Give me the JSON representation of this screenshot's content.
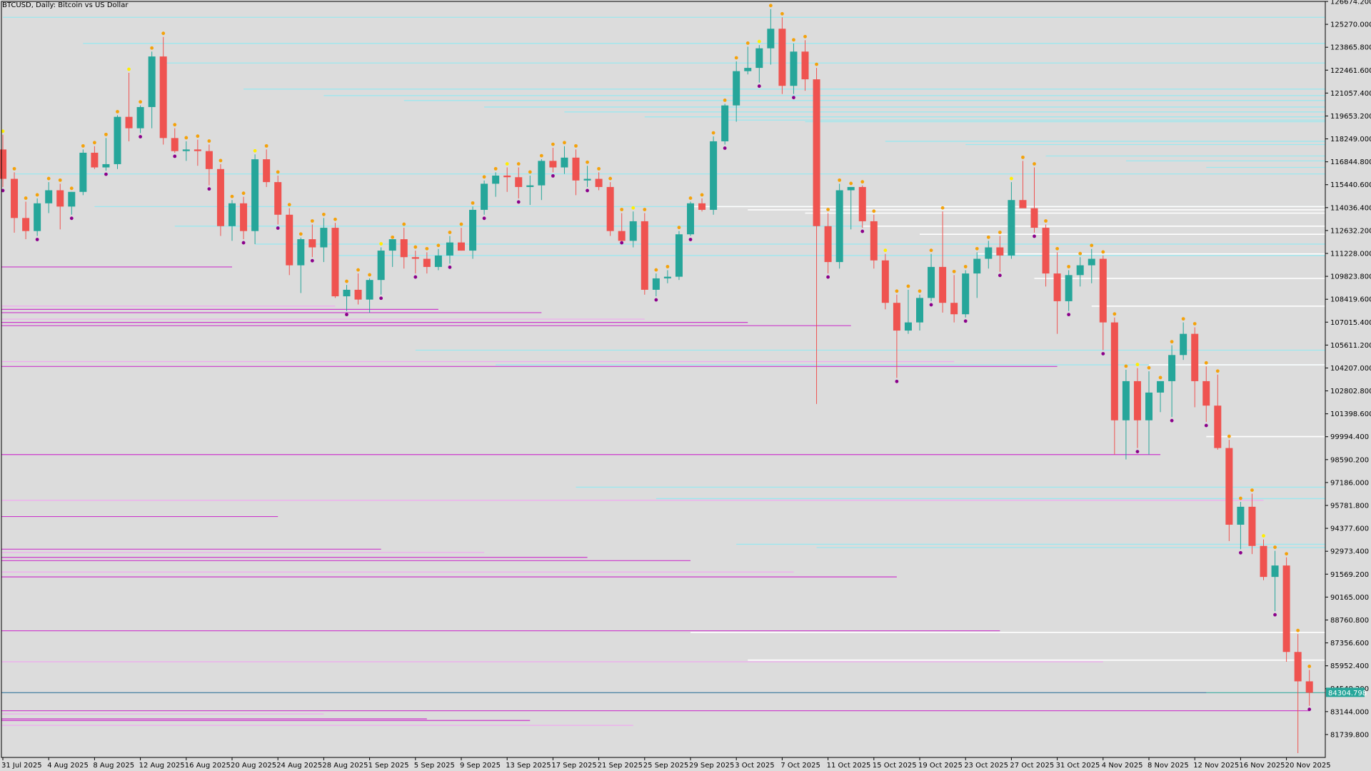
{
  "window": {
    "title": "BTCUSD, Daily:  Bitcoin vs US Dollar"
  },
  "chart_data": {
    "type": "candlestick",
    "symbol": "BTCUSD",
    "timeframe": "Daily",
    "description": "Bitcoin vs US Dollar",
    "current_price": 84304.798,
    "current_price_label": "84304.798",
    "ylim": [
      80335.8,
      126674.2
    ],
    "y_ticks": [
      "126674.200",
      "125270.000",
      "123865.800",
      "122461.600",
      "121057.400",
      "119653.200",
      "118249.000",
      "116844.800",
      "115440.600",
      "114036.400",
      "112632.200",
      "111228.000",
      "109823.800",
      "108419.600",
      "107015.400",
      "105611.200",
      "104207.000",
      "102802.800",
      "101398.600",
      "99994.400",
      "98590.200",
      "97186.000",
      "95781.800",
      "94377.600",
      "92973.400",
      "91569.200",
      "90165.000",
      "88760.800",
      "87356.600",
      "85952.400",
      "84548.200",
      "83144.000",
      "81739.800"
    ],
    "x_ticks": [
      "31 Jul 2025",
      "4 Aug 2025",
      "8 Aug 2025",
      "12 Aug 2025",
      "16 Aug 2025",
      "20 Aug 2025",
      "24 Aug 2025",
      "28 Aug 2025",
      "1 Sep 2025",
      "5 Sep 2025",
      "9 Sep 2025",
      "13 Sep 2025",
      "17 Sep 2025",
      "21 Sep 2025",
      "25 Sep 2025",
      "29 Sep 2025",
      "3 Oct 2025",
      "7 Oct 2025",
      "11 Oct 2025",
      "15 Oct 2025",
      "19 Oct 2025",
      "23 Oct 2025",
      "27 Oct 2025",
      "31 Oct 2025",
      "4 Nov 2025",
      "8 Nov 2025",
      "12 Nov 2025",
      "16 Nov 2025",
      "20 Nov 2025"
    ],
    "candles": [
      {
        "o": 117600,
        "h": 118500,
        "l": 115300,
        "c": 115800
      },
      {
        "o": 115800,
        "h": 116200,
        "l": 112500,
        "c": 113400
      },
      {
        "o": 113400,
        "h": 114400,
        "l": 112100,
        "c": 112600
      },
      {
        "o": 112600,
        "h": 114600,
        "l": 112300,
        "c": 114300
      },
      {
        "o": 114300,
        "h": 115600,
        "l": 113700,
        "c": 115100
      },
      {
        "o": 115100,
        "h": 115500,
        "l": 112700,
        "c": 114100
      },
      {
        "o": 114100,
        "h": 115000,
        "l": 113600,
        "c": 115000
      },
      {
        "o": 115000,
        "h": 117600,
        "l": 114800,
        "c": 117400
      },
      {
        "o": 117400,
        "h": 117800,
        "l": 116400,
        "c": 116500
      },
      {
        "o": 116500,
        "h": 118300,
        "l": 116300,
        "c": 116700
      },
      {
        "o": 116700,
        "h": 119700,
        "l": 116400,
        "c": 119600
      },
      {
        "o": 119600,
        "h": 122300,
        "l": 118100,
        "c": 118900
      },
      {
        "o": 118900,
        "h": 120300,
        "l": 118600,
        "c": 120200
      },
      {
        "o": 120200,
        "h": 123600,
        "l": 118900,
        "c": 123300
      },
      {
        "o": 123300,
        "h": 124500,
        "l": 117900,
        "c": 118300
      },
      {
        "o": 118300,
        "h": 118900,
        "l": 117400,
        "c": 117500
      },
      {
        "o": 117500,
        "h": 118100,
        "l": 116900,
        "c": 117600
      },
      {
        "o": 117600,
        "h": 118200,
        "l": 116600,
        "c": 117500
      },
      {
        "o": 117500,
        "h": 117900,
        "l": 115400,
        "c": 116400
      },
      {
        "o": 116400,
        "h": 116700,
        "l": 112300,
        "c": 112900
      },
      {
        "o": 112900,
        "h": 114500,
        "l": 112000,
        "c": 114300
      },
      {
        "o": 114300,
        "h": 114700,
        "l": 112100,
        "c": 112600
      },
      {
        "o": 112600,
        "h": 117300,
        "l": 111800,
        "c": 117000
      },
      {
        "o": 117000,
        "h": 117600,
        "l": 115300,
        "c": 115600
      },
      {
        "o": 115600,
        "h": 116000,
        "l": 113000,
        "c": 113600
      },
      {
        "o": 113600,
        "h": 114000,
        "l": 109900,
        "c": 110500
      },
      {
        "o": 110500,
        "h": 112200,
        "l": 108800,
        "c": 112100
      },
      {
        "o": 112100,
        "h": 113000,
        "l": 111000,
        "c": 111600
      },
      {
        "o": 111600,
        "h": 113400,
        "l": 110700,
        "c": 112800
      },
      {
        "o": 112800,
        "h": 113100,
        "l": 108500,
        "c": 108600
      },
      {
        "o": 108600,
        "h": 109300,
        "l": 107700,
        "c": 109000
      },
      {
        "o": 109000,
        "h": 110000,
        "l": 108100,
        "c": 108400
      },
      {
        "o": 108400,
        "h": 109700,
        "l": 107600,
        "c": 109600
      },
      {
        "o": 109600,
        "h": 111600,
        "l": 108700,
        "c": 111400
      },
      {
        "o": 111400,
        "h": 112000,
        "l": 110400,
        "c": 112100
      },
      {
        "o": 112100,
        "h": 112800,
        "l": 110300,
        "c": 111000
      },
      {
        "o": 111000,
        "h": 111400,
        "l": 110000,
        "c": 110900
      },
      {
        "o": 110900,
        "h": 111300,
        "l": 110000,
        "c": 110400
      },
      {
        "o": 110400,
        "h": 111500,
        "l": 110200,
        "c": 111100
      },
      {
        "o": 111100,
        "h": 112300,
        "l": 110600,
        "c": 111900
      },
      {
        "o": 111900,
        "h": 112800,
        "l": 111400,
        "c": 111400
      },
      {
        "o": 111400,
        "h": 114100,
        "l": 110900,
        "c": 113900
      },
      {
        "o": 113900,
        "h": 115700,
        "l": 113600,
        "c": 115500
      },
      {
        "o": 115500,
        "h": 116200,
        "l": 114700,
        "c": 116000
      },
      {
        "o": 116000,
        "h": 116500,
        "l": 115000,
        "c": 115900
      },
      {
        "o": 115900,
        "h": 116500,
        "l": 114600,
        "c": 115300
      },
      {
        "o": 115300,
        "h": 116000,
        "l": 114200,
        "c": 115400
      },
      {
        "o": 115400,
        "h": 117000,
        "l": 114500,
        "c": 116900
      },
      {
        "o": 116900,
        "h": 117700,
        "l": 116200,
        "c": 116500
      },
      {
        "o": 116500,
        "h": 117800,
        "l": 116100,
        "c": 117100
      },
      {
        "o": 117100,
        "h": 117600,
        "l": 114800,
        "c": 115700
      },
      {
        "o": 115700,
        "h": 116600,
        "l": 115300,
        "c": 115800
      },
      {
        "o": 115800,
        "h": 116200,
        "l": 115100,
        "c": 115300
      },
      {
        "o": 115300,
        "h": 115600,
        "l": 112300,
        "c": 112600
      },
      {
        "o": 112600,
        "h": 113700,
        "l": 112100,
        "c": 112000
      },
      {
        "o": 112000,
        "h": 113800,
        "l": 111600,
        "c": 113200
      },
      {
        "o": 113200,
        "h": 113700,
        "l": 108700,
        "c": 109000
      },
      {
        "o": 109000,
        "h": 110000,
        "l": 108600,
        "c": 109700
      },
      {
        "o": 109700,
        "h": 110200,
        "l": 109400,
        "c": 109800
      },
      {
        "o": 109800,
        "h": 112600,
        "l": 109600,
        "c": 112400
      },
      {
        "o": 112400,
        "h": 114400,
        "l": 112300,
        "c": 114300
      },
      {
        "o": 114300,
        "h": 114600,
        "l": 113800,
        "c": 113900
      },
      {
        "o": 113900,
        "h": 118400,
        "l": 113600,
        "c": 118100
      },
      {
        "o": 118100,
        "h": 120400,
        "l": 117900,
        "c": 120300
      },
      {
        "o": 120300,
        "h": 123000,
        "l": 119300,
        "c": 122400
      },
      {
        "o": 122400,
        "h": 123900,
        "l": 122200,
        "c": 122600
      },
      {
        "o": 122600,
        "h": 124000,
        "l": 121700,
        "c": 123800
      },
      {
        "o": 123800,
        "h": 126200,
        "l": 122800,
        "c": 125000
      },
      {
        "o": 125000,
        "h": 125700,
        "l": 121000,
        "c": 121500
      },
      {
        "o": 121500,
        "h": 124100,
        "l": 121000,
        "c": 123600
      },
      {
        "o": 123600,
        "h": 124300,
        "l": 121200,
        "c": 121900
      },
      {
        "o": 121900,
        "h": 122600,
        "l": 102000,
        "c": 112900
      },
      {
        "o": 112900,
        "h": 113700,
        "l": 110000,
        "c": 110700
      },
      {
        "o": 110700,
        "h": 115500,
        "l": 110300,
        "c": 115100
      },
      {
        "o": 115100,
        "h": 115300,
        "l": 112700,
        "c": 115300
      },
      {
        "o": 115300,
        "h": 115400,
        "l": 112800,
        "c": 113200
      },
      {
        "o": 113200,
        "h": 113600,
        "l": 110300,
        "c": 110800
      },
      {
        "o": 110800,
        "h": 111200,
        "l": 107800,
        "c": 108200
      },
      {
        "o": 108200,
        "h": 108700,
        "l": 103600,
        "c": 106500
      },
      {
        "o": 106500,
        "h": 109000,
        "l": 106300,
        "c": 107000
      },
      {
        "o": 107000,
        "h": 108700,
        "l": 106500,
        "c": 108500
      },
      {
        "o": 108500,
        "h": 111200,
        "l": 108300,
        "c": 110400
      },
      {
        "o": 110400,
        "h": 113800,
        "l": 107600,
        "c": 108200
      },
      {
        "o": 108200,
        "h": 109900,
        "l": 107000,
        "c": 107500
      },
      {
        "o": 107500,
        "h": 110200,
        "l": 107300,
        "c": 110000
      },
      {
        "o": 110000,
        "h": 111300,
        "l": 108500,
        "c": 110900
      },
      {
        "o": 110900,
        "h": 112000,
        "l": 110300,
        "c": 111600
      },
      {
        "o": 111600,
        "h": 112300,
        "l": 110100,
        "c": 111100
      },
      {
        "o": 111100,
        "h": 115600,
        "l": 110900,
        "c": 114500
      },
      {
        "o": 114500,
        "h": 116900,
        "l": 114100,
        "c": 114000
      },
      {
        "o": 114000,
        "h": 116500,
        "l": 112500,
        "c": 112800
      },
      {
        "o": 112800,
        "h": 113000,
        "l": 109200,
        "c": 110000
      },
      {
        "o": 110000,
        "h": 111300,
        "l": 106300,
        "c": 108300
      },
      {
        "o": 108300,
        "h": 110200,
        "l": 107700,
        "c": 109900
      },
      {
        "o": 109900,
        "h": 111000,
        "l": 109200,
        "c": 110500
      },
      {
        "o": 110500,
        "h": 111500,
        "l": 109400,
        "c": 110900
      },
      {
        "o": 110900,
        "h": 111100,
        "l": 105300,
        "c": 107000
      },
      {
        "o": 107000,
        "h": 107300,
        "l": 98900,
        "c": 101000
      },
      {
        "o": 101000,
        "h": 104100,
        "l": 98600,
        "c": 103400
      },
      {
        "o": 103400,
        "h": 104200,
        "l": 99300,
        "c": 101000
      },
      {
        "o": 101000,
        "h": 104000,
        "l": 98900,
        "c": 102700
      },
      {
        "o": 102700,
        "h": 103400,
        "l": 101500,
        "c": 103400
      },
      {
        "o": 103400,
        "h": 105600,
        "l": 101200,
        "c": 105000
      },
      {
        "o": 105000,
        "h": 107000,
        "l": 104700,
        "c": 106300
      },
      {
        "o": 106300,
        "h": 106700,
        "l": 101800,
        "c": 103400
      },
      {
        "o": 103400,
        "h": 104300,
        "l": 100900,
        "c": 101900
      },
      {
        "o": 101900,
        "h": 103800,
        "l": 99200,
        "c": 99300
      },
      {
        "o": 99300,
        "h": 99800,
        "l": 93600,
        "c": 94600
      },
      {
        "o": 94600,
        "h": 96000,
        "l": 93100,
        "c": 95700
      },
      {
        "o": 95700,
        "h": 96500,
        "l": 92800,
        "c": 93300
      },
      {
        "o": 93300,
        "h": 93700,
        "l": 91200,
        "c": 91400
      },
      {
        "o": 91400,
        "h": 93000,
        "l": 89300,
        "c": 92100
      },
      {
        "o": 92100,
        "h": 92600,
        "l": 86200,
        "c": 86800
      },
      {
        "o": 86800,
        "h": 87900,
        "l": 80600,
        "c": 85000
      },
      {
        "o": 85000,
        "h": 85700,
        "l": 83500,
        "c": 84300
      }
    ],
    "levels": {
      "cyan_resistance": [
        125700,
        124100,
        122900,
        121300,
        120900,
        120600,
        120200,
        119900,
        119600,
        119400,
        119300,
        118100,
        117900,
        117200,
        116900,
        116500,
        116100,
        114100,
        112900,
        111800,
        111100,
        105300,
        104400,
        96900,
        96200,
        93400,
        93200,
        86300
      ],
      "white_resistance": [
        114100,
        113900,
        113700,
        112900,
        112400,
        111200,
        109700,
        108000,
        104400,
        100000,
        88000,
        86300
      ],
      "magenta_support": [
        110400,
        108000,
        107800,
        107600,
        107200,
        107000,
        106800,
        104600,
        104300,
        98900,
        96100,
        95100,
        93100,
        92900,
        92600,
        92400,
        91700,
        91400,
        88100,
        86200,
        84300,
        83200,
        83000,
        82700,
        82600,
        82300
      ]
    },
    "colors": {
      "bull": "#26a69a",
      "bear": "#ef5350",
      "background": "#dcdcdc",
      "grid_axis": "#000000",
      "resistance": "#9ce7ef",
      "resistance_strong": "#ffffff",
      "support": "#cc39cc",
      "support_light": "#f0a9f0",
      "marker_orange": "#f4a20b",
      "marker_purple": "#8b008b",
      "marker_yellow": "#ffee00",
      "price_label": "#26a69a"
    }
  }
}
